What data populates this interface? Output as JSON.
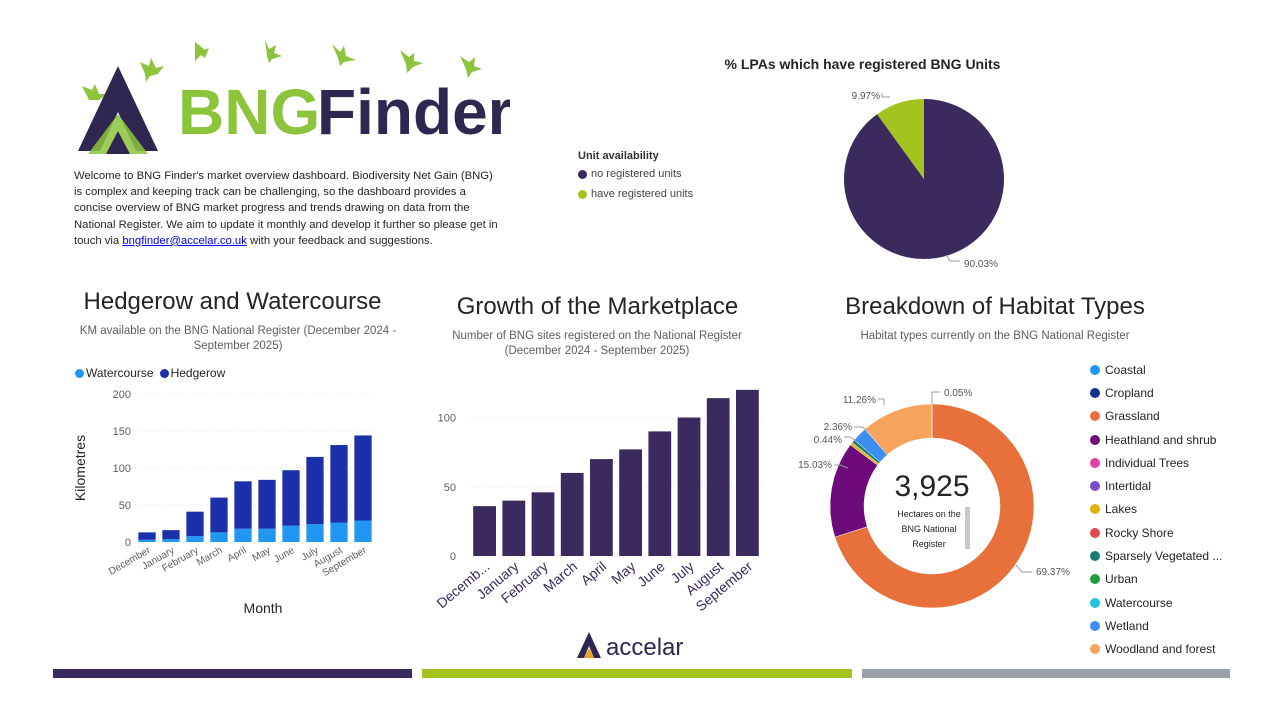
{
  "brand": {
    "logo_text_green": "BNG",
    "logo_text_dark": "Finder",
    "footer_logo_text": "accelar"
  },
  "intro": {
    "text_before": "Welcome to BNG Finder's market overview dashboard. Biodiversity Net Gain (BNG) is complex and keeping track can be challenging, so the dashboard provides a concise overview of BNG market progress and trends drawing on data from the National Register. We aim to update it monthly and develop it further so please get in touch via ",
    "email": "bngfinder@accelar.co.uk",
    "text_after": " with your feedback and suggestions."
  },
  "colors": {
    "dark_purple": "#3b2a5e",
    "lime": "#a3c41f",
    "grey_strip": "#9aa1a8",
    "watercourse": "#2196f3",
    "hedgerow": "#1a2fa8",
    "growth_bar": "#3b2a5e"
  },
  "chart_data": [
    {
      "id": "lpa_pie",
      "type": "pie",
      "title": "% LPAs which have registered BNG Units",
      "legend_title": "Unit availability",
      "slices": [
        {
          "name": "no registered units",
          "value": 90.03,
          "label": "90.03%",
          "color": "#3b2a5e"
        },
        {
          "name": "have registered units",
          "value": 9.97,
          "label": "9.97%",
          "color": "#a3c41f"
        }
      ]
    },
    {
      "id": "hedgerow_watercourse",
      "type": "bar",
      "stacked": true,
      "title": "Hedgerow and Watercourse",
      "subtitle": "KM available on the BNG National Register (December 2024 - September 2025)",
      "xlabel": "Month",
      "ylabel": "Kilometres",
      "ylim": [
        0,
        200
      ],
      "yticks": [
        0,
        50,
        100,
        150,
        200
      ],
      "categories": [
        "December",
        "January",
        "February",
        "March",
        "April",
        "May",
        "June",
        "July",
        "August",
        "September"
      ],
      "series": [
        {
          "name": "Watercourse",
          "color": "#2196f3",
          "values": [
            3,
            4,
            8,
            13,
            18,
            18,
            22,
            24,
            26,
            29
          ]
        },
        {
          "name": "Hedgerow",
          "color": "#1a2fa8",
          "values": [
            10,
            12,
            33,
            47,
            64,
            66,
            75,
            91,
            105,
            115
          ]
        }
      ]
    },
    {
      "id": "marketplace_growth",
      "type": "bar",
      "title": "Growth of the Marketplace",
      "subtitle": "Number of BNG sites registered on the National Register (December 2024 - September 2025)",
      "ylim": [
        0,
        130
      ],
      "yticks": [
        0,
        50,
        100
      ],
      "categories": [
        "Decemb...",
        "January",
        "February",
        "March",
        "April",
        "May",
        "June",
        "July",
        "August",
        "September"
      ],
      "values": [
        36,
        40,
        46,
        60,
        70,
        77,
        90,
        100,
        114,
        120
      ]
    },
    {
      "id": "habitat_types",
      "type": "pie",
      "donut": true,
      "title": "Breakdown of Habitat Types",
      "subtitle": "Habitat types currently on the BNG National Register",
      "center_value": "3,925",
      "center_label": "Hectares on the BNG National Register",
      "slices": [
        {
          "name": "Grassland",
          "value": 69.37,
          "label": "69.37%",
          "color": "#e8703a"
        },
        {
          "name": "Heathland and shrub",
          "value": 15.03,
          "label": "15.03%",
          "color": "#6f0a7a"
        },
        {
          "name": "Lakes",
          "value": 0.44,
          "label": "0.44%",
          "color": "#e0b30f"
        },
        {
          "name": "Sparsely Vegetated ...",
          "value": 0.5,
          "label": "",
          "color": "#1b7a73"
        },
        {
          "name": "Wetland",
          "value": 2.36,
          "label": "2.36%",
          "color": "#3b8ff0"
        },
        {
          "name": "Woodland and forest",
          "value": 11.26,
          "label": "11.26%",
          "color": "#f7a35c"
        },
        {
          "name": "Urban",
          "value": 0.05,
          "label": "0.05%",
          "color": "#1e9e3e"
        }
      ],
      "legend": [
        {
          "name": "Coastal",
          "color": "#2196f3"
        },
        {
          "name": "Cropland",
          "color": "#14318c"
        },
        {
          "name": "Grassland",
          "color": "#e8703a"
        },
        {
          "name": "Heathland and shrub",
          "color": "#6f0a7a"
        },
        {
          "name": "Individual Trees",
          "color": "#e040a0"
        },
        {
          "name": "Intertidal",
          "color": "#7b4bc9"
        },
        {
          "name": "Lakes",
          "color": "#e0b30f"
        },
        {
          "name": "Rocky Shore",
          "color": "#e0474f"
        },
        {
          "name": "Sparsely Vegetated ...",
          "color": "#1b7a73"
        },
        {
          "name": "Urban",
          "color": "#1e9e3e"
        },
        {
          "name": "Watercourse",
          "color": "#26c0e0"
        },
        {
          "name": "Wetland",
          "color": "#3b8ff0"
        },
        {
          "name": "Woodland and forest",
          "color": "#f7a35c"
        }
      ]
    }
  ]
}
